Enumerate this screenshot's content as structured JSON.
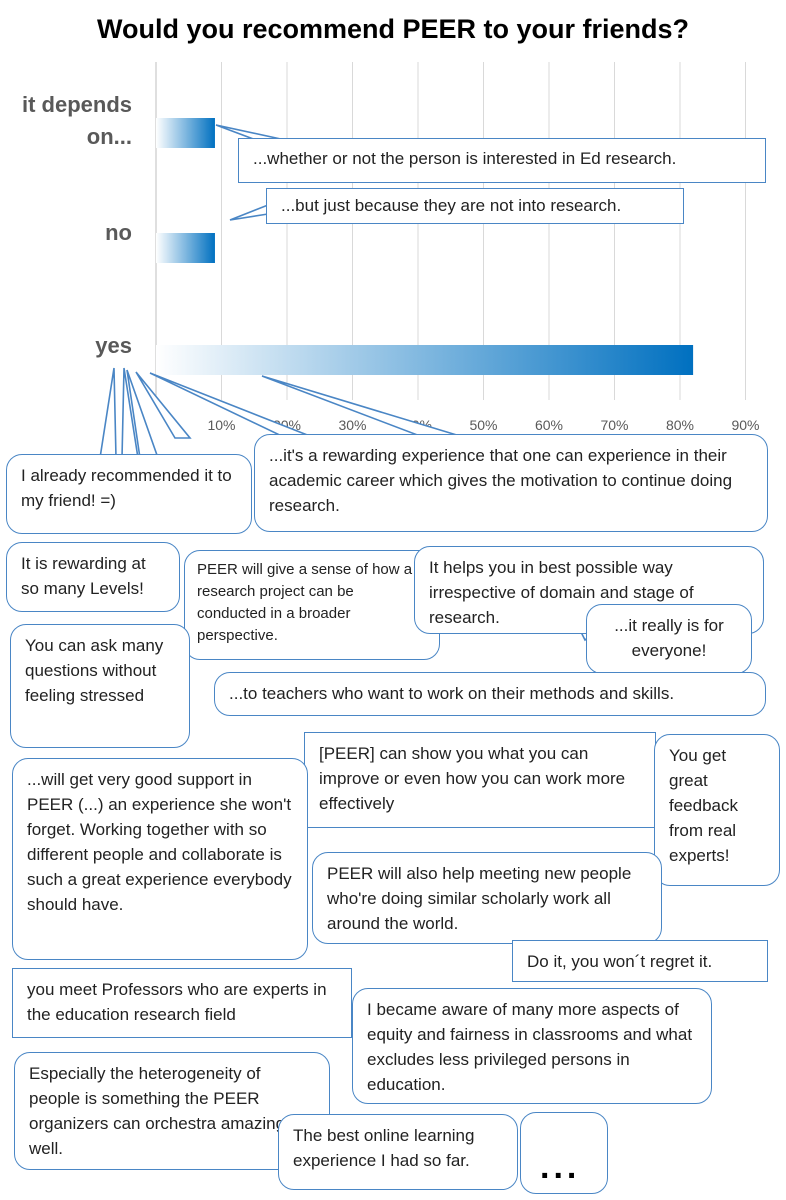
{
  "chart_data": {
    "type": "bar",
    "orientation": "horizontal",
    "title": "Would you recommend PEER to your friends?",
    "categories": [
      "it depends on...",
      "no",
      "yes"
    ],
    "values": [
      9,
      9,
      82
    ],
    "unit": "%",
    "xlim": [
      0,
      90
    ],
    "ticks": [
      "10%",
      "20%",
      "30%",
      "40%",
      "50%",
      "60%",
      "70%",
      "80%",
      "90%"
    ],
    "grid": true,
    "bar_color": "#0070c0"
  },
  "comments": [
    "...whether or not the person is interested in Ed research.",
    "...but just because they are not into research.",
    "I already recommended it to my friend! =)",
    "...it's a rewarding experience that one can experience in their academic career which gives the motivation to continue doing research.",
    "It is rewarding at so many Levels!",
    "PEER will give a sense of how a research project can be conducted in a broader perspective.",
    "It helps you in best possible way irrespective of domain and stage of research.",
    "...it really is for everyone!",
    "You can ask many questions without feeling stressed",
    "...to teachers who want to work on their methods and skills.",
    "[PEER] can show you what you can improve or even how you can work more effectively",
    "You get great feedback from real experts!",
    "...will get very good support in PEER (...) an experience she won't forget. Working together with so different people and collaborate is such a great experience everybody should have.",
    "PEER will also help meeting new people who're doing similar scholarly work all around the world.",
    "Do it, you won´t regret it.",
    "you meet Professors who are experts in the education research field",
    "I became aware of many more aspects of equity and fairness in classrooms and what excludes less privileged persons in education.",
    "Especially the heterogeneity of people is something the PEER organizers can orchestra amazingly well.",
    "The best online learning experience I had so far.",
    "..."
  ]
}
